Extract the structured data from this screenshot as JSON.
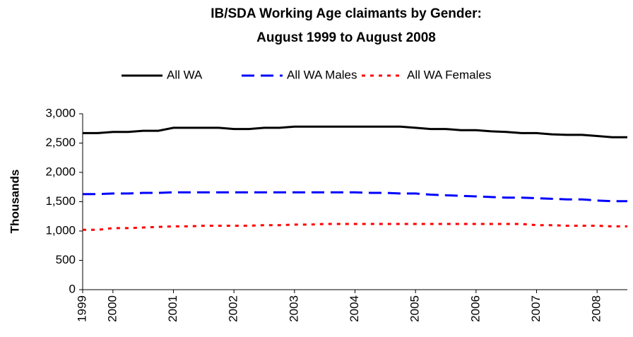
{
  "chart_data": {
    "type": "line",
    "title": [
      "IB/SDA Working Age claimants by Gender:",
      "August 1999 to August 2008"
    ],
    "y_label": "Thousands",
    "categories": [
      "1999",
      null,
      "2000",
      null,
      null,
      null,
      "2001",
      null,
      null,
      null,
      "2002",
      null,
      null,
      null,
      "2003",
      null,
      null,
      null,
      "2004",
      null,
      null,
      null,
      "2005",
      null,
      null,
      null,
      "2006",
      null,
      null,
      null,
      "2007",
      null,
      null,
      null,
      "2008",
      null,
      null
    ],
    "series": [
      {
        "name": "All WA",
        "color": "#000000",
        "line_style": "solid",
        "values": [
          2670,
          2670,
          2690,
          2690,
          2710,
          2710,
          2760,
          2760,
          2760,
          2760,
          2740,
          2740,
          2760,
          2760,
          2780,
          2780,
          2780,
          2780,
          2780,
          2780,
          2780,
          2780,
          2760,
          2740,
          2740,
          2720,
          2720,
          2700,
          2690,
          2670,
          2670,
          2650,
          2640,
          2640,
          2620,
          2600,
          2600
        ]
      },
      {
        "name": "All WA Males",
        "color": "#0000ff",
        "line_style": "dashed",
        "values": [
          1630,
          1630,
          1640,
          1640,
          1650,
          1650,
          1660,
          1660,
          1660,
          1660,
          1660,
          1660,
          1660,
          1660,
          1660,
          1660,
          1660,
          1660,
          1660,
          1650,
          1650,
          1640,
          1640,
          1620,
          1610,
          1600,
          1590,
          1580,
          1570,
          1570,
          1560,
          1550,
          1540,
          1540,
          1520,
          1510,
          1510
        ]
      },
      {
        "name": "All WA Females",
        "color": "#ff0000",
        "line_style": "dotted",
        "values": [
          1020,
          1020,
          1050,
          1050,
          1060,
          1070,
          1080,
          1080,
          1090,
          1090,
          1090,
          1090,
          1100,
          1100,
          1110,
          1110,
          1120,
          1120,
          1120,
          1120,
          1120,
          1120,
          1120,
          1120,
          1120,
          1120,
          1120,
          1120,
          1120,
          1120,
          1100,
          1100,
          1090,
          1090,
          1090,
          1080,
          1080
        ]
      }
    ],
    "ylim": [
      0,
      3000
    ],
    "yticks": [
      0,
      500,
      {
        "value": 1000,
        "label": "1,000"
      },
      {
        "value": 1500,
        "label": "1,500"
      },
      {
        "value": 2000,
        "label": "2,000"
      },
      {
        "value": 2500,
        "label": "2,500"
      },
      {
        "value": 3000,
        "label": "3,000"
      }
    ],
    "legend": "top"
  }
}
